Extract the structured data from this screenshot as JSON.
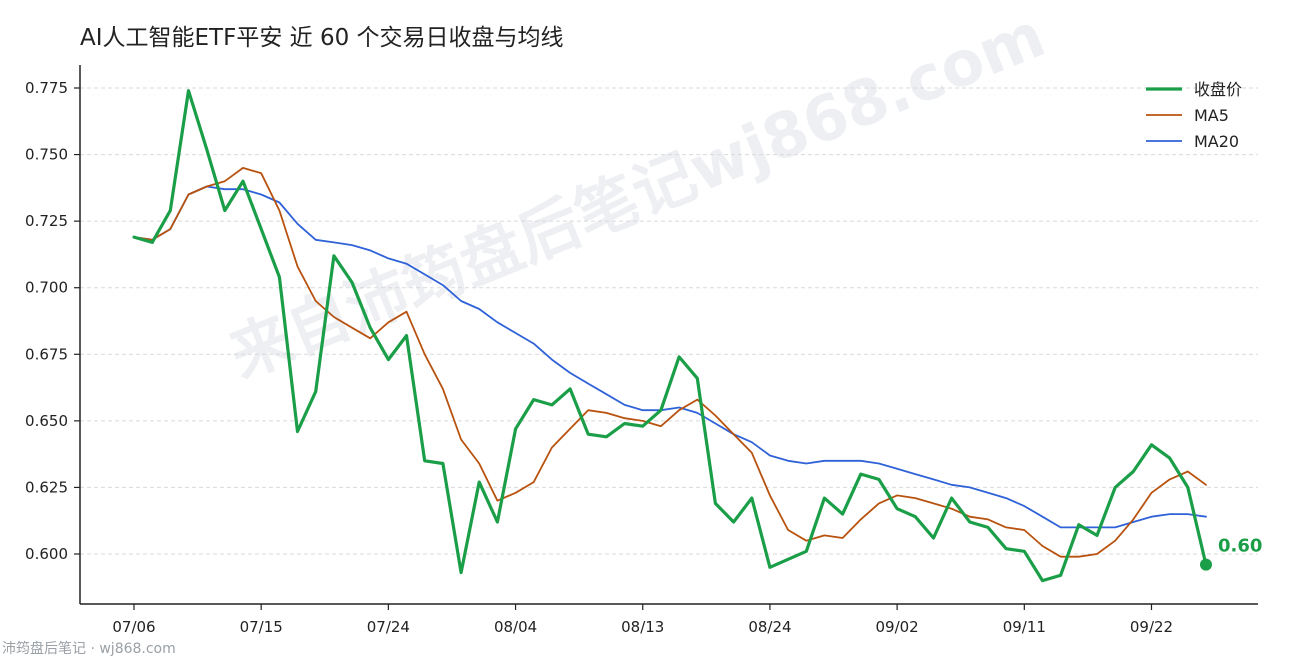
{
  "chart_data": {
    "type": "line",
    "title": "AI人工智能ETF平安 近 60 个交易日收盘与均线",
    "xlabel": "",
    "ylabel": "",
    "ylim": [
      0.588,
      0.78
    ],
    "yticks": [
      0.6,
      0.625,
      0.65,
      0.675,
      0.7,
      0.725,
      0.75,
      0.775
    ],
    "ytick_labels": [
      "0.600",
      "0.625",
      "0.650",
      "0.675",
      "0.700",
      "0.725",
      "0.750",
      "0.775"
    ],
    "xtick_labels": [
      "07/06",
      "07/15",
      "07/24",
      "08/04",
      "08/13",
      "08/24",
      "09/02",
      "09/11",
      "09/22"
    ],
    "xtick_indices": [
      0,
      7,
      14,
      21,
      28,
      35,
      42,
      49,
      56
    ],
    "grid": "horizontal-dashed",
    "legend_position": "top-right",
    "colors": {
      "close": "#1a9e47",
      "ma5": "#b8520f",
      "ma20": "#2f62d8"
    },
    "series": [
      {
        "name": "收盘价",
        "values": [
          0.719,
          0.717,
          0.729,
          0.774,
          0.752,
          0.729,
          0.74,
          0.722,
          0.704,
          0.646,
          0.661,
          0.712,
          0.702,
          0.685,
          0.673,
          0.682,
          0.635,
          0.634,
          0.593,
          0.627,
          0.612,
          0.647,
          0.658,
          0.656,
          0.662,
          0.645,
          0.644,
          0.649,
          0.648,
          0.654,
          0.674,
          0.666,
          0.619,
          0.612,
          0.621,
          0.595,
          0.598,
          0.601,
          0.621,
          0.615,
          0.63,
          0.628,
          0.617,
          0.614,
          0.606,
          0.621,
          0.612,
          0.61,
          0.602,
          0.601,
          0.59,
          0.592,
          0.611,
          0.607,
          0.625,
          0.631,
          0.641,
          0.636,
          0.625,
          0.596
        ]
      },
      {
        "name": "MA5",
        "values": [
          0.719,
          0.718,
          0.722,
          0.735,
          0.738,
          0.74,
          0.745,
          0.743,
          0.729,
          0.708,
          0.695,
          0.689,
          0.685,
          0.681,
          0.687,
          0.691,
          0.675,
          0.662,
          0.643,
          0.634,
          0.62,
          0.623,
          0.627,
          0.64,
          0.647,
          0.654,
          0.653,
          0.651,
          0.65,
          0.648,
          0.654,
          0.658,
          0.652,
          0.645,
          0.638,
          0.622,
          0.609,
          0.605,
          0.607,
          0.606,
          0.613,
          0.619,
          0.622,
          0.621,
          0.619,
          0.617,
          0.614,
          0.613,
          0.61,
          0.609,
          0.603,
          0.599,
          0.599,
          0.6,
          0.605,
          0.613,
          0.623,
          0.628,
          0.631,
          0.626
        ]
      },
      {
        "name": "MA20",
        "values": [
          0.719,
          0.718,
          0.722,
          0.735,
          0.738,
          0.737,
          0.737,
          0.735,
          0.732,
          0.724,
          0.718,
          0.717,
          0.716,
          0.714,
          0.711,
          0.709,
          0.705,
          0.701,
          0.695,
          0.692,
          0.687,
          0.683,
          0.679,
          0.673,
          0.668,
          0.664,
          0.66,
          0.656,
          0.654,
          0.654,
          0.655,
          0.653,
          0.649,
          0.645,
          0.642,
          0.637,
          0.635,
          0.634,
          0.635,
          0.635,
          0.635,
          0.634,
          0.632,
          0.63,
          0.628,
          0.626,
          0.625,
          0.623,
          0.621,
          0.618,
          0.614,
          0.61,
          0.61,
          0.61,
          0.61,
          0.612,
          0.614,
          0.615,
          0.615,
          0.614
        ]
      }
    ],
    "last_value_label": "0.60",
    "watermark": "来自沛筠盘后笔记wj868.com"
  },
  "footer": {
    "text": "沛筠盘后笔记 · wj868.com"
  }
}
